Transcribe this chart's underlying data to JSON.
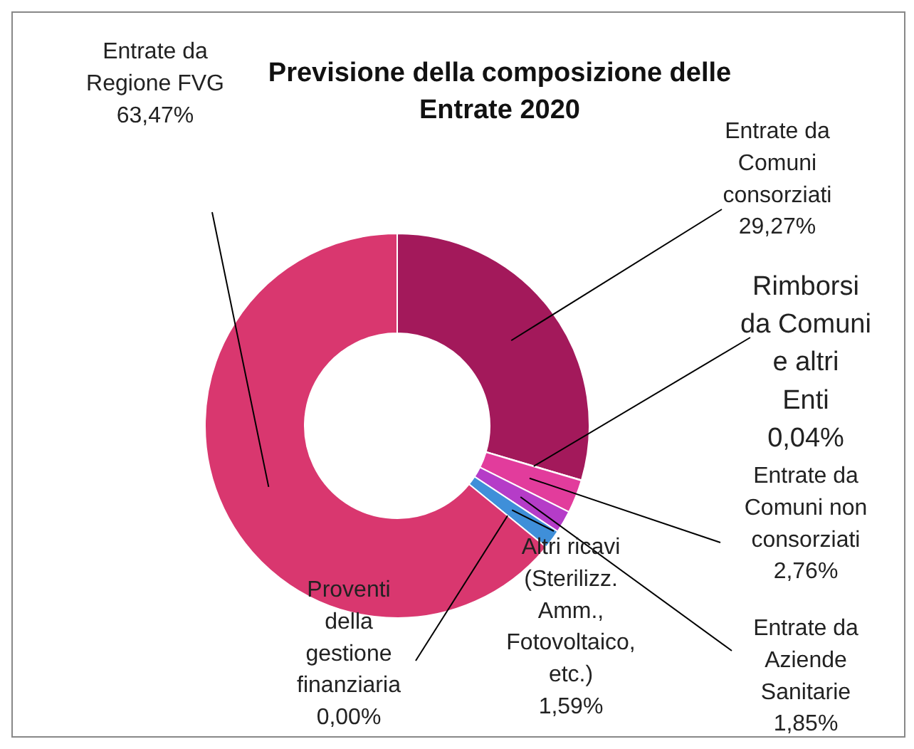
{
  "chart_data": {
    "type": "donut",
    "title": "Previsione della composizione delle Entrate 2020",
    "categories": [
      "Entrate da Comuni consorziati",
      "Rimborsi da Comuni e altri Enti",
      "Entrate da Comuni non consorziati",
      "Entrate da Aziende Sanitarie",
      "Altri ricavi (Sterilizz. Amm., Fotovoltaico, etc.)",
      "Proventi della gestione finanziaria",
      "Entrate da Regione FVG"
    ],
    "values": [
      29.27,
      0.04,
      2.76,
      1.85,
      1.59,
      0.0,
      63.47
    ],
    "value_labels": [
      "29,27%",
      "0,04%",
      "2,76%",
      "1,85%",
      "1,59%",
      "0,00%",
      "63,47%"
    ],
    "colors": [
      "#a3195b",
      "#e8a0c8",
      "#e23c9c",
      "#b53cc8",
      "#3f8fd9",
      "#4a62c0",
      "#d9376f"
    ],
    "legend": false
  }
}
